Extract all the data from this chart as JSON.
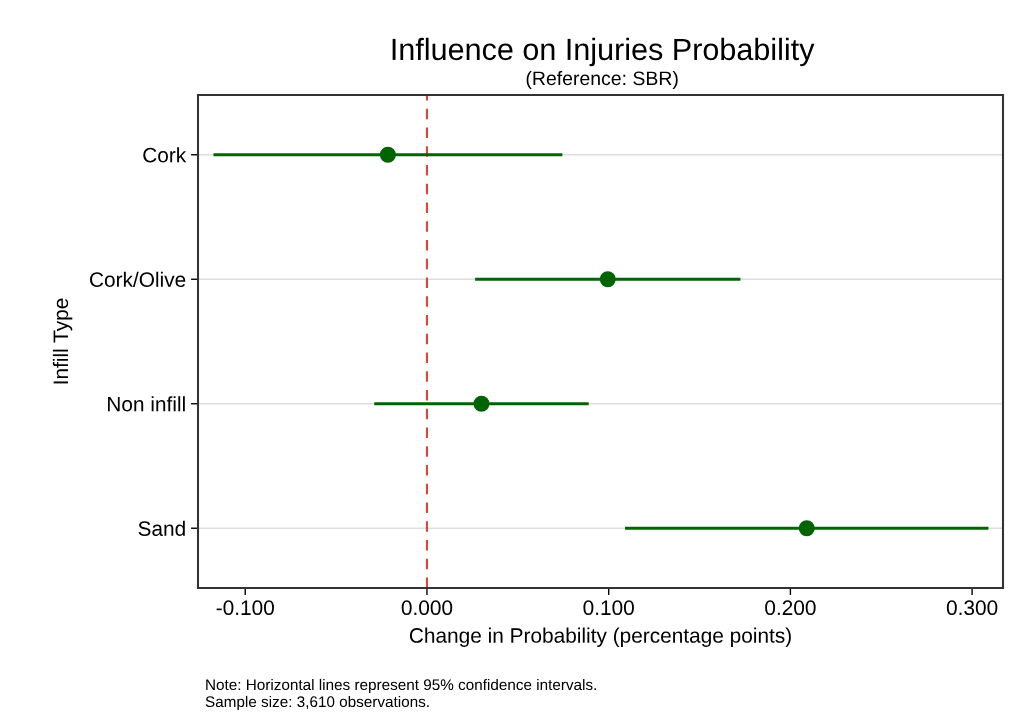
{
  "chart_data": {
    "type": "scatter",
    "orientation": "horizontal",
    "title": "Influence on Injuries Probability",
    "subtitle": "(Reference: SBR)",
    "xlabel": "Change in Probability (percentage points)",
    "ylabel": "Infill Type",
    "categories": [
      "Cork",
      "Cork/Olive",
      "Non infill",
      "Sand"
    ],
    "series": [
      {
        "color": "#006400",
        "values": [
          -0.0215,
          0.0995,
          0.03,
          0.209
        ],
        "errors": [
          0.096,
          0.073,
          0.059,
          0.1
        ]
      }
    ],
    "xlim": [
      -0.126,
      0.317
    ],
    "xticks": [
      {
        "value": -0.1,
        "label": "-0.100"
      },
      {
        "value": 0,
        "label": "0.000"
      },
      {
        "value": 0.1,
        "label": "0.100"
      },
      {
        "value": 0.2,
        "label": "0.200"
      },
      {
        "value": 0.3,
        "label": "0.300"
      }
    ],
    "ref_lines": [
      {
        "axis": "x",
        "value": 0,
        "color": "#e0453a",
        "line_style": "dashed"
      }
    ],
    "grid": "y",
    "marker": "circle",
    "annotations": [
      "Note: Horizontal lines represent 95% confidence intervals.",
      "Sample size: 3,610 observations."
    ]
  }
}
